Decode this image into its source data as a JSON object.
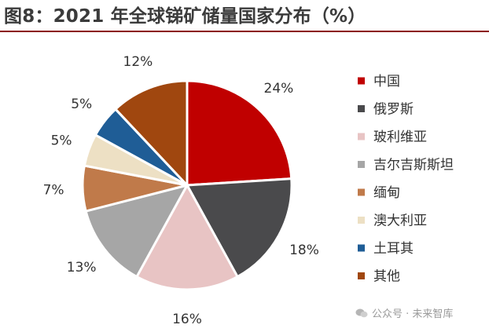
{
  "title": "图8：2021 年全球锑矿储量国家分布（%）",
  "watermark": "公众号 · 未来智库",
  "chart_data": {
    "type": "pie",
    "title": "图8：2021 年全球锑矿储量国家分布（%）",
    "unit": "%",
    "start_angle_deg": 0,
    "direction": "clockwise",
    "legend_position": "right",
    "slices": [
      {
        "label": "中国",
        "value": 24,
        "display": "24%",
        "color": "#c00000"
      },
      {
        "label": "俄罗斯",
        "value": 18,
        "display": "18%",
        "color": "#4a4a4c"
      },
      {
        "label": "玻利维亚",
        "value": 16,
        "display": "16%",
        "color": "#e8c4c4"
      },
      {
        "label": "吉尔吉斯斯坦",
        "value": 13,
        "display": "13%",
        "color": "#a6a6a6"
      },
      {
        "label": "缅甸",
        "value": 7,
        "display": "7%",
        "color": "#c07a4a"
      },
      {
        "label": "澳大利亚",
        "value": 5,
        "display": "5%",
        "color": "#ede0c4"
      },
      {
        "label": "土耳其",
        "value": 5,
        "display": "5%",
        "color": "#1f5d96"
      },
      {
        "label": "其他",
        "value": 12,
        "display": "12%",
        "color": "#a0470f"
      }
    ]
  }
}
